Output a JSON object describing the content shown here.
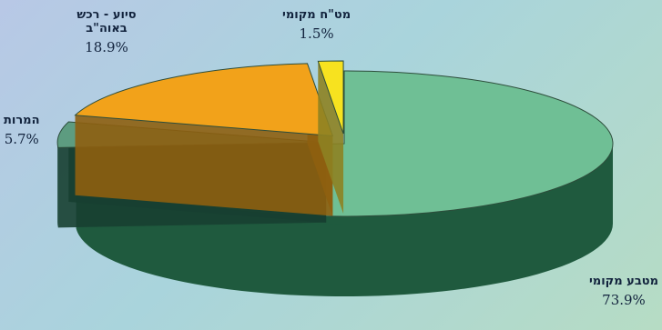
{
  "chart_data": {
    "type": "pie",
    "three_d": true,
    "slices": [
      {
        "label": "מטבע מקומי",
        "value": 73.9,
        "value_text": "73.9%",
        "top_color": "#6fbf95",
        "side_color": "#1f5a3e",
        "exploded": false
      },
      {
        "label": "המרות",
        "value": 5.7,
        "value_text": "5.7%",
        "top_color": "#5d9c80",
        "side_color": "#173f31",
        "exploded": true
      },
      {
        "label": "סיוע - רכש באוה\"ב",
        "value": 18.9,
        "value_text": "18.9%",
        "top_color": "#f2a21a",
        "side_color": "#8e5f10",
        "exploded": true
      },
      {
        "label": "מט\"ח מקומי",
        "value": 1.5,
        "value_text": "1.5%",
        "top_color": "#f7e21f",
        "side_color": "#8d8222",
        "exploded": true
      }
    ]
  }
}
